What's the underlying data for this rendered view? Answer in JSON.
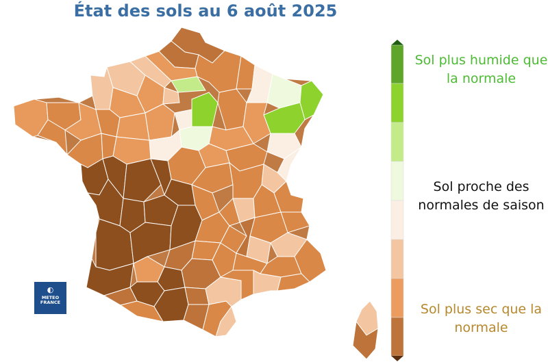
{
  "title": "État des sols au 6 août 2025",
  "legend": {
    "wet": "Sol plus humide que la normale",
    "normal": "Sol proche des normales de saison",
    "dry": "Sol plus sec que la normale",
    "scale_colors": [
      "#2f7a12",
      "#5fa52a",
      "#8dd22d",
      "#c4eb8a",
      "#eff9de",
      "#fbefe4",
      "#f3c5a0",
      "#eb9c5e",
      "#bd733a",
      "#8e4f1f"
    ]
  },
  "logo": {
    "name": "METEO FRANCE",
    "icon": "meteo-france-logo"
  },
  "map_classes": {
    "wetter": "#8dd22d",
    "slightly_wetter": "#c4eb8a",
    "near_normal": "#fbefe4",
    "slightly_drier": "#f3c5a0",
    "drier": "#eb9c5e",
    "much_drier": "#bd733a",
    "very_dry": "#8e4f1f"
  }
}
